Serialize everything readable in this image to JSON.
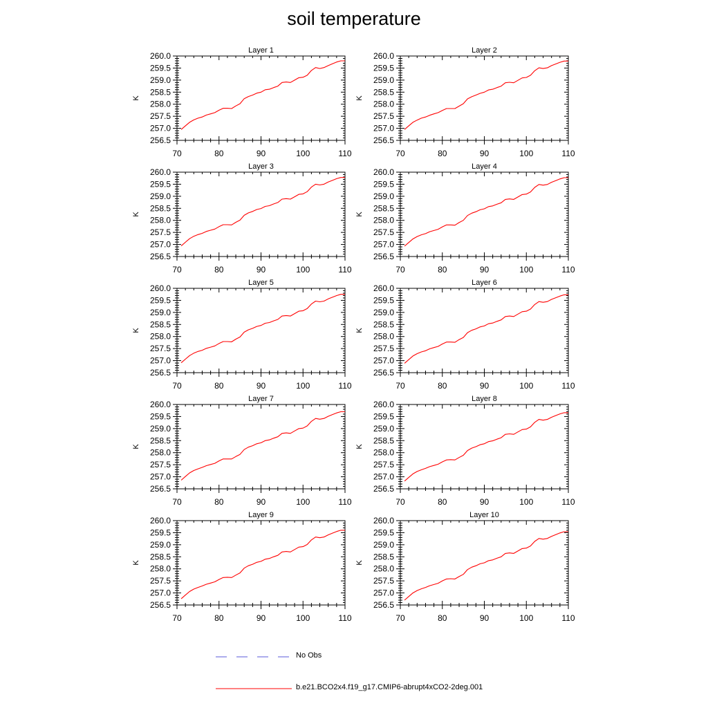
{
  "title": "soil temperature",
  "colors": {
    "model": "#ff0000",
    "obs": "#5a5ad8",
    "axis": "#000000"
  },
  "legend": [
    {
      "label": "No Obs",
      "style": "dashed",
      "color": "#5a5ad8"
    },
    {
      "label": "b.e21.BCO2x4.f19_g17.CMIP6-abrupt4xCO2-2deg.001",
      "style": "solid",
      "color": "#ff0000"
    }
  ],
  "chart_data": [
    {
      "type": "line",
      "title": "Layer 1",
      "ylabel": "K",
      "xlim": [
        70,
        110
      ],
      "ylim": [
        256.5,
        260.0
      ],
      "x_ticks": [
        70,
        80,
        90,
        100,
        110
      ],
      "y_ticks": [
        "260.0",
        "259.5",
        "259.0",
        "258.5",
        "258.0",
        "257.5",
        "257.0",
        "256.5"
      ],
      "x": [
        71,
        72,
        73,
        74,
        75,
        76,
        77,
        78,
        79,
        80,
        81,
        82,
        83,
        84,
        85,
        86,
        87,
        88,
        89,
        90,
        91,
        92,
        93,
        94,
        95,
        96,
        97,
        98,
        99,
        100,
        101,
        102,
        103,
        104,
        105,
        106,
        107,
        108,
        109,
        110
      ],
      "series": [
        {
          "values": [
            256.95,
            257.1,
            257.25,
            257.35,
            257.42,
            257.47,
            257.55,
            257.6,
            257.65,
            257.75,
            257.83,
            257.83,
            257.82,
            257.93,
            258.02,
            258.23,
            258.32,
            258.38,
            258.46,
            258.5,
            258.6,
            258.62,
            258.69,
            258.75,
            258.9,
            258.92,
            258.9,
            259.0,
            259.1,
            259.12,
            259.2,
            259.4,
            259.52,
            259.48,
            259.52,
            259.6,
            259.68,
            259.75,
            259.8,
            259.8
          ]
        }
      ]
    },
    {
      "type": "line",
      "title": "Layer 2",
      "ylabel": "K",
      "xlim": [
        70,
        110
      ],
      "ylim": [
        256.5,
        260.0
      ],
      "x_ticks": [
        70,
        80,
        90,
        100,
        110
      ],
      "y_ticks": [
        "260.0",
        "259.5",
        "259.0",
        "258.5",
        "258.0",
        "257.5",
        "257.0",
        "256.5"
      ],
      "x": [
        71,
        72,
        73,
        74,
        75,
        76,
        77,
        78,
        79,
        80,
        81,
        82,
        83,
        84,
        85,
        86,
        87,
        88,
        89,
        90,
        91,
        92,
        93,
        94,
        95,
        96,
        97,
        98,
        99,
        100,
        101,
        102,
        103,
        104,
        105,
        106,
        107,
        108,
        109,
        110
      ],
      "series": [
        {
          "values": [
            256.95,
            257.1,
            257.25,
            257.34,
            257.42,
            257.47,
            257.54,
            257.6,
            257.65,
            257.74,
            257.82,
            257.82,
            257.82,
            257.92,
            258.02,
            258.22,
            258.31,
            258.38,
            258.45,
            258.5,
            258.59,
            258.62,
            258.69,
            258.75,
            258.89,
            258.91,
            258.89,
            258.99,
            259.09,
            259.11,
            259.2,
            259.39,
            259.51,
            259.48,
            259.51,
            259.6,
            259.67,
            259.74,
            259.79,
            259.79
          ]
        }
      ]
    },
    {
      "type": "line",
      "title": "Layer 3",
      "ylabel": "K",
      "xlim": [
        70,
        110
      ],
      "ylim": [
        256.5,
        260.0
      ],
      "x_ticks": [
        70,
        80,
        90,
        100,
        110
      ],
      "y_ticks": [
        "260.0",
        "259.5",
        "259.0",
        "258.5",
        "258.0",
        "257.5",
        "257.0",
        "256.5"
      ],
      "x": [
        71,
        72,
        73,
        74,
        75,
        76,
        77,
        78,
        79,
        80,
        81,
        82,
        83,
        84,
        85,
        86,
        87,
        88,
        89,
        90,
        91,
        92,
        93,
        94,
        95,
        96,
        97,
        98,
        99,
        100,
        101,
        102,
        103,
        104,
        105,
        106,
        107,
        108,
        109,
        110
      ],
      "series": [
        {
          "values": [
            256.94,
            257.09,
            257.24,
            257.34,
            257.41,
            257.46,
            257.54,
            257.59,
            257.64,
            257.74,
            257.82,
            257.82,
            257.81,
            257.92,
            258.01,
            258.21,
            258.31,
            258.37,
            258.45,
            258.49,
            258.58,
            258.61,
            258.68,
            258.74,
            258.88,
            258.9,
            258.88,
            258.98,
            259.08,
            259.1,
            259.19,
            259.38,
            259.5,
            259.47,
            259.5,
            259.59,
            259.66,
            259.73,
            259.78,
            259.78
          ]
        }
      ]
    },
    {
      "type": "line",
      "title": "Layer 4",
      "ylabel": "K",
      "xlim": [
        70,
        110
      ],
      "ylim": [
        256.5,
        260.0
      ],
      "x_ticks": [
        70,
        80,
        90,
        100,
        110
      ],
      "y_ticks": [
        "260.0",
        "259.5",
        "259.0",
        "258.5",
        "258.0",
        "257.5",
        "257.0",
        "256.5"
      ],
      "x": [
        71,
        72,
        73,
        74,
        75,
        76,
        77,
        78,
        79,
        80,
        81,
        82,
        83,
        84,
        85,
        86,
        87,
        88,
        89,
        90,
        91,
        92,
        93,
        94,
        95,
        96,
        97,
        98,
        99,
        100,
        101,
        102,
        103,
        104,
        105,
        106,
        107,
        108,
        109,
        110
      ],
      "series": [
        {
          "values": [
            256.93,
            257.08,
            257.23,
            257.33,
            257.4,
            257.45,
            257.53,
            257.58,
            257.63,
            257.73,
            257.81,
            257.81,
            257.8,
            257.91,
            258.0,
            258.2,
            258.3,
            258.36,
            258.44,
            258.48,
            258.57,
            258.6,
            258.67,
            258.73,
            258.87,
            258.89,
            258.87,
            258.97,
            259.07,
            259.09,
            259.18,
            259.37,
            259.49,
            259.46,
            259.49,
            259.58,
            259.65,
            259.72,
            259.77,
            259.77
          ]
        }
      ]
    },
    {
      "type": "line",
      "title": "Layer 5",
      "ylabel": "K",
      "xlim": [
        70,
        110
      ],
      "ylim": [
        256.5,
        260.0
      ],
      "x_ticks": [
        70,
        80,
        90,
        100,
        110
      ],
      "y_ticks": [
        "260.0",
        "259.5",
        "259.0",
        "258.5",
        "258.0",
        "257.5",
        "257.0",
        "256.5"
      ],
      "x": [
        71,
        72,
        73,
        74,
        75,
        76,
        77,
        78,
        79,
        80,
        81,
        82,
        83,
        84,
        85,
        86,
        87,
        88,
        89,
        90,
        91,
        92,
        93,
        94,
        95,
        96,
        97,
        98,
        99,
        100,
        101,
        102,
        103,
        104,
        105,
        106,
        107,
        108,
        109,
        110
      ],
      "series": [
        {
          "values": [
            256.91,
            257.06,
            257.21,
            257.31,
            257.38,
            257.43,
            257.51,
            257.56,
            257.61,
            257.71,
            257.79,
            257.79,
            257.78,
            257.89,
            257.98,
            258.18,
            258.28,
            258.34,
            258.42,
            258.46,
            258.55,
            258.58,
            258.65,
            258.71,
            258.85,
            258.87,
            258.85,
            258.95,
            259.05,
            259.07,
            259.16,
            259.35,
            259.47,
            259.44,
            259.47,
            259.56,
            259.63,
            259.7,
            259.75,
            259.75
          ]
        }
      ]
    },
    {
      "type": "line",
      "title": "Layer 6",
      "ylabel": "K",
      "xlim": [
        70,
        110
      ],
      "ylim": [
        256.5,
        260.0
      ],
      "x_ticks": [
        70,
        80,
        90,
        100,
        110
      ],
      "y_ticks": [
        "260.0",
        "259.5",
        "259.0",
        "258.5",
        "258.0",
        "257.5",
        "257.0",
        "256.5"
      ],
      "x": [
        71,
        72,
        73,
        74,
        75,
        76,
        77,
        78,
        79,
        80,
        81,
        82,
        83,
        84,
        85,
        86,
        87,
        88,
        89,
        90,
        91,
        92,
        93,
        94,
        95,
        96,
        97,
        98,
        99,
        100,
        101,
        102,
        103,
        104,
        105,
        106,
        107,
        108,
        109,
        110
      ],
      "series": [
        {
          "values": [
            256.89,
            257.04,
            257.19,
            257.29,
            257.36,
            257.41,
            257.49,
            257.54,
            257.59,
            257.69,
            257.77,
            257.77,
            257.76,
            257.87,
            257.96,
            258.16,
            258.26,
            258.32,
            258.4,
            258.44,
            258.53,
            258.56,
            258.63,
            258.69,
            258.83,
            258.85,
            258.83,
            258.93,
            259.03,
            259.05,
            259.14,
            259.33,
            259.45,
            259.42,
            259.45,
            259.54,
            259.61,
            259.68,
            259.73,
            259.73
          ]
        }
      ]
    },
    {
      "type": "line",
      "title": "Layer 7",
      "ylabel": "K",
      "xlim": [
        70,
        110
      ],
      "ylim": [
        256.5,
        260.0
      ],
      "x_ticks": [
        70,
        80,
        90,
        100,
        110
      ],
      "y_ticks": [
        "260.0",
        "259.5",
        "259.0",
        "258.5",
        "258.0",
        "257.5",
        "257.0",
        "256.5"
      ],
      "x": [
        71,
        72,
        73,
        74,
        75,
        76,
        77,
        78,
        79,
        80,
        81,
        82,
        83,
        84,
        85,
        86,
        87,
        88,
        89,
        90,
        91,
        92,
        93,
        94,
        95,
        96,
        97,
        98,
        99,
        100,
        101,
        102,
        103,
        104,
        105,
        106,
        107,
        108,
        109,
        110
      ],
      "series": [
        {
          "values": [
            256.86,
            257.01,
            257.16,
            257.26,
            257.33,
            257.39,
            257.46,
            257.51,
            257.56,
            257.66,
            257.74,
            257.74,
            257.74,
            257.84,
            257.93,
            258.13,
            258.23,
            258.29,
            258.37,
            258.41,
            258.5,
            258.53,
            258.6,
            258.66,
            258.8,
            258.82,
            258.8,
            258.9,
            259.0,
            259.02,
            259.11,
            259.3,
            259.42,
            259.39,
            259.42,
            259.51,
            259.58,
            259.65,
            259.7,
            259.7
          ]
        }
      ]
    },
    {
      "type": "line",
      "title": "Layer 8",
      "ylabel": "K",
      "xlim": [
        70,
        110
      ],
      "ylim": [
        256.5,
        260.0
      ],
      "x_ticks": [
        70,
        80,
        90,
        100,
        110
      ],
      "y_ticks": [
        "260.0",
        "259.5",
        "259.0",
        "258.5",
        "258.0",
        "257.5",
        "257.0",
        "256.5"
      ],
      "x": [
        71,
        72,
        73,
        74,
        75,
        76,
        77,
        78,
        79,
        80,
        81,
        82,
        83,
        84,
        85,
        86,
        87,
        88,
        89,
        90,
        91,
        92,
        93,
        94,
        95,
        96,
        97,
        98,
        99,
        100,
        101,
        102,
        103,
        104,
        105,
        106,
        107,
        108,
        109,
        110
      ],
      "series": [
        {
          "values": [
            256.82,
            256.97,
            257.12,
            257.22,
            257.29,
            257.35,
            257.42,
            257.47,
            257.52,
            257.62,
            257.7,
            257.71,
            257.7,
            257.8,
            257.89,
            258.09,
            258.19,
            258.25,
            258.33,
            258.37,
            258.46,
            258.49,
            258.56,
            258.62,
            258.76,
            258.78,
            258.76,
            258.86,
            258.96,
            258.98,
            259.07,
            259.26,
            259.38,
            259.35,
            259.38,
            259.47,
            259.54,
            259.61,
            259.66,
            259.66
          ]
        }
      ]
    },
    {
      "type": "line",
      "title": "Layer 9",
      "ylabel": "K",
      "xlim": [
        70,
        110
      ],
      "ylim": [
        256.5,
        260.0
      ],
      "x_ticks": [
        70,
        80,
        90,
        100,
        110
      ],
      "y_ticks": [
        "260.0",
        "259.5",
        "259.0",
        "258.5",
        "258.0",
        "257.5",
        "257.0",
        "256.5"
      ],
      "x": [
        71,
        72,
        73,
        74,
        75,
        76,
        77,
        78,
        79,
        80,
        81,
        82,
        83,
        84,
        85,
        86,
        87,
        88,
        89,
        90,
        91,
        92,
        93,
        94,
        95,
        96,
        97,
        98,
        99,
        100,
        101,
        102,
        103,
        104,
        105,
        106,
        107,
        108,
        109,
        110
      ],
      "series": [
        {
          "values": [
            256.76,
            256.91,
            257.06,
            257.16,
            257.23,
            257.29,
            257.36,
            257.41,
            257.46,
            257.56,
            257.64,
            257.65,
            257.64,
            257.74,
            257.83,
            258.03,
            258.13,
            258.19,
            258.27,
            258.31,
            258.4,
            258.43,
            258.5,
            258.56,
            258.7,
            258.72,
            258.7,
            258.8,
            258.9,
            258.92,
            259.01,
            259.2,
            259.32,
            259.29,
            259.32,
            259.41,
            259.48,
            259.55,
            259.6,
            259.6
          ]
        }
      ]
    },
    {
      "type": "line",
      "title": "Layer 10",
      "ylabel": "K",
      "xlim": [
        70,
        110
      ],
      "ylim": [
        256.5,
        260.0
      ],
      "x_ticks": [
        70,
        80,
        90,
        100,
        110
      ],
      "y_ticks": [
        "260.0",
        "259.5",
        "259.0",
        "258.5",
        "258.0",
        "257.5",
        "257.0",
        "256.5"
      ],
      "x": [
        71,
        72,
        73,
        74,
        75,
        76,
        77,
        78,
        79,
        80,
        81,
        82,
        83,
        84,
        85,
        86,
        87,
        88,
        89,
        90,
        91,
        92,
        93,
        94,
        95,
        96,
        97,
        98,
        99,
        100,
        101,
        102,
        103,
        104,
        105,
        106,
        107,
        108,
        109,
        110
      ],
      "series": [
        {
          "values": [
            256.7,
            256.85,
            257.0,
            257.1,
            257.17,
            257.23,
            257.3,
            257.35,
            257.4,
            257.5,
            257.58,
            257.59,
            257.58,
            257.68,
            257.77,
            257.97,
            258.07,
            258.13,
            258.21,
            258.25,
            258.34,
            258.37,
            258.44,
            258.5,
            258.64,
            258.66,
            258.64,
            258.74,
            258.84,
            258.86,
            258.95,
            259.14,
            259.26,
            259.23,
            259.26,
            259.35,
            259.42,
            259.49,
            259.54,
            259.54
          ]
        }
      ]
    }
  ]
}
